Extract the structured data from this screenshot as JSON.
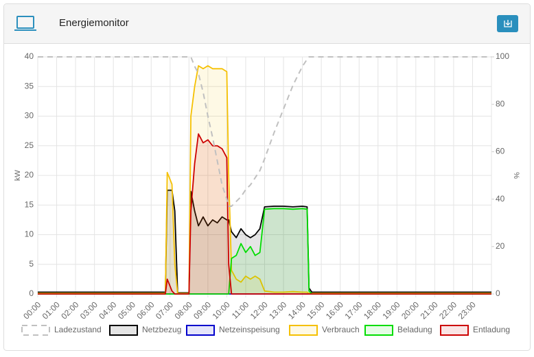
{
  "header": {
    "title": "Energiemonitor"
  },
  "chart_data": {
    "type": "line",
    "ylabel": "kW",
    "y2label": "%",
    "x": [
      0,
      6.75,
      6.85,
      7.1,
      7.25,
      7.4,
      8.0,
      8.1,
      8.3,
      8.5,
      8.75,
      9.0,
      9.25,
      9.5,
      9.75,
      10.0,
      10.1,
      10.25,
      10.5,
      10.75,
      11.0,
      11.25,
      11.5,
      11.75,
      12.0,
      12.5,
      13.0,
      13.5,
      14.0,
      14.25,
      14.35,
      14.5,
      24
    ],
    "xlim": [
      0,
      24
    ],
    "xticks": [
      {
        "value": 0,
        "label": "00:00"
      },
      {
        "value": 1,
        "label": "01:00"
      },
      {
        "value": 2,
        "label": "02:00"
      },
      {
        "value": 3,
        "label": "03:00"
      },
      {
        "value": 4,
        "label": "04:00"
      },
      {
        "value": 5,
        "label": "05:00"
      },
      {
        "value": 6,
        "label": "06:00"
      },
      {
        "value": 7,
        "label": "07:00"
      },
      {
        "value": 8,
        "label": "08:00"
      },
      {
        "value": 9,
        "label": "09:00"
      },
      {
        "value": 10,
        "label": "10:00"
      },
      {
        "value": 11,
        "label": "11:00"
      },
      {
        "value": 12,
        "label": "12:00"
      },
      {
        "value": 13,
        "label": "13:00"
      },
      {
        "value": 14,
        "label": "14:00"
      },
      {
        "value": 15,
        "label": "15:00"
      },
      {
        "value": 16,
        "label": "16:00"
      },
      {
        "value": 17,
        "label": "17:00"
      },
      {
        "value": 18,
        "label": "18:00"
      },
      {
        "value": 19,
        "label": "19:00"
      },
      {
        "value": 20,
        "label": "20:00"
      },
      {
        "value": 21,
        "label": "21:00"
      },
      {
        "value": 22,
        "label": "22:00"
      },
      {
        "value": 23,
        "label": "23:00"
      }
    ],
    "ylim": [
      0,
      40
    ],
    "yticks": [
      0,
      5,
      10,
      15,
      20,
      25,
      30,
      35,
      40
    ],
    "y2lim": [
      0,
      100
    ],
    "y2ticks": [
      0,
      20,
      40,
      60,
      80,
      100
    ],
    "grid": true,
    "legend": "bottom",
    "series": [
      {
        "name": "Ladezustand",
        "color": "#c0c0c0",
        "axis": "y2",
        "dashed": true,
        "area": false,
        "values": [
          100,
          100,
          100,
          100,
          100,
          100,
          100,
          100,
          96,
          93,
          85,
          75,
          66,
          56,
          46,
          40,
          37,
          37,
          39,
          41,
          44,
          46,
          49,
          52,
          57,
          68,
          78,
          88,
          96,
          99,
          100,
          100,
          100
        ]
      },
      {
        "name": "Netzbezug",
        "color": "#000000",
        "dashed": false,
        "area": true,
        "values": [
          0.3,
          0.3,
          17.5,
          17.5,
          14,
          0.2,
          0.2,
          17.3,
          14,
          11.5,
          13,
          11.5,
          12.5,
          12,
          13,
          12.5,
          12.5,
          10.5,
          9.5,
          11,
          10,
          9.5,
          10,
          11,
          14.7,
          14.8,
          14.8,
          14.7,
          14.8,
          14.7,
          1,
          0.3,
          0.3
        ]
      },
      {
        "name": "Netzeinspeisung",
        "color": "#0000cc",
        "dashed": false,
        "area": true,
        "values": [
          0,
          0,
          0,
          0,
          0,
          0,
          0,
          0,
          0,
          0,
          0,
          0,
          0,
          0,
          0,
          0,
          0,
          0,
          0,
          0,
          0,
          0,
          0,
          0,
          0,
          0,
          0,
          0,
          0,
          0,
          0,
          0,
          0
        ]
      },
      {
        "name": "Verbrauch",
        "color": "#f5c000",
        "dashed": false,
        "area": true,
        "values": [
          0.1,
          0.1,
          20.5,
          18.5,
          5,
          0.1,
          0.1,
          30,
          35,
          38.5,
          38,
          38.5,
          38,
          38,
          38,
          37.5,
          20,
          4,
          2.5,
          2,
          3,
          2.5,
          3,
          2.5,
          0.5,
          0.3,
          0.3,
          0.4,
          0.3,
          0.3,
          0.1,
          0.1,
          0.1
        ]
      },
      {
        "name": "Beladung",
        "color": "#00dd00",
        "dashed": false,
        "area": true,
        "values": [
          0,
          0,
          0,
          0,
          0,
          0,
          0,
          0,
          0,
          0,
          0,
          0,
          0,
          0,
          0,
          0,
          0,
          6,
          6.5,
          8.5,
          7,
          8,
          6.5,
          7,
          14.3,
          14.4,
          14.4,
          14.3,
          14.4,
          14.3,
          0.5,
          0,
          0
        ]
      },
      {
        "name": "Entladung",
        "color": "#cc0000",
        "dashed": false,
        "area": true,
        "values": [
          0,
          0,
          2.5,
          0.5,
          0,
          0,
          0,
          14,
          22,
          27,
          25.5,
          26,
          25,
          25,
          24.5,
          23,
          5,
          0,
          0,
          0,
          0,
          0,
          0,
          0,
          0,
          0,
          0,
          0,
          0,
          0,
          0,
          0,
          0
        ]
      }
    ]
  }
}
